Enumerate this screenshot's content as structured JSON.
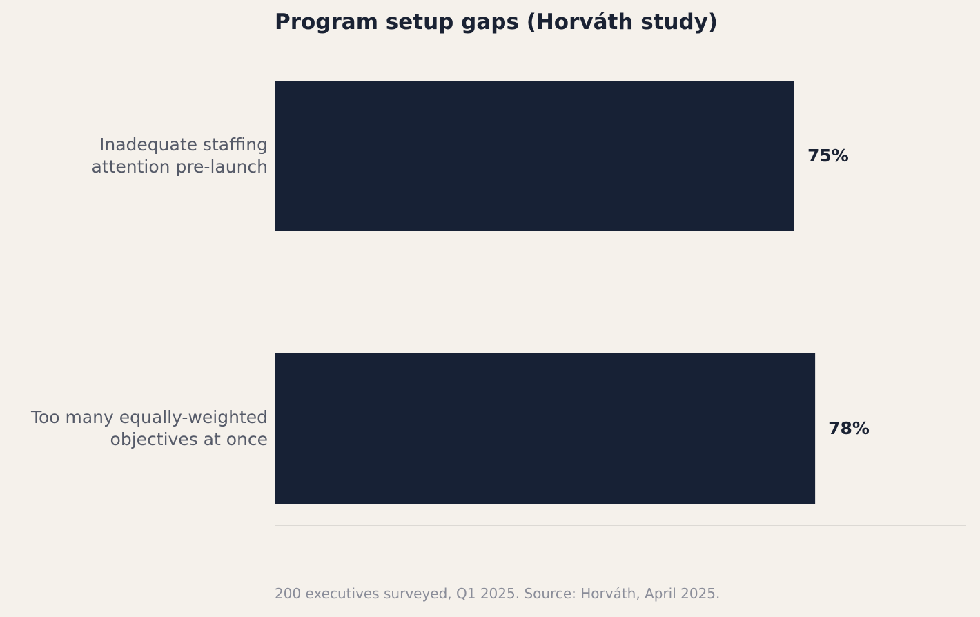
{
  "chart_data": {
    "type": "hbar",
    "title": "Program setup gaps (Horváth study)",
    "categories": [
      "Inadequate staffing\nattention pre-launch",
      "Too many equally-weighted\nobjectives at once"
    ],
    "values": [
      75,
      78
    ],
    "value_labels": [
      "75%",
      "78%"
    ],
    "color": "#172135",
    "xlim": [
      0,
      100
    ],
    "note": "200 executives surveyed, Q1 2025. Source: Horváth, April 2025."
  }
}
